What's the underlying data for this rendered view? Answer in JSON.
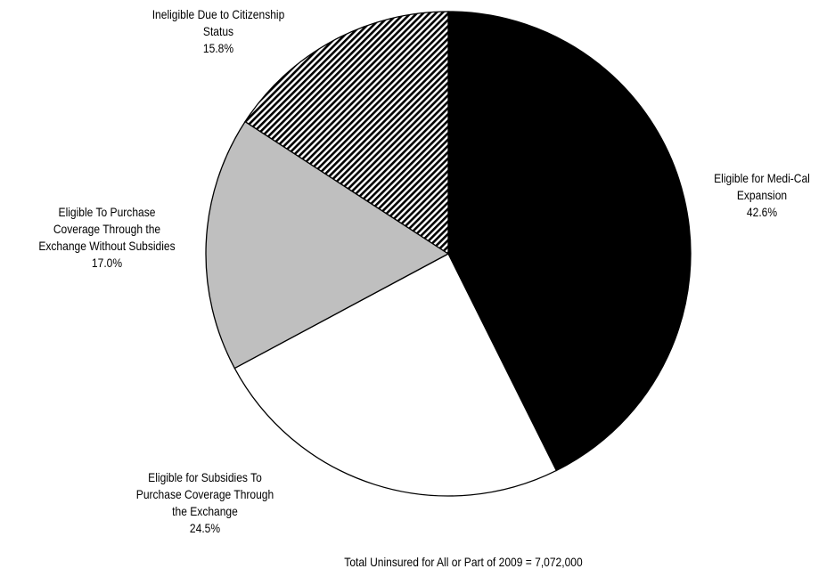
{
  "chart_data": {
    "type": "pie",
    "slices": [
      {
        "label_lines": [
          "Eligible for Medi-Cal",
          "Expansion"
        ],
        "value": 42.6,
        "value_label": "42.6%",
        "color": "#000000",
        "pattern": "solid"
      },
      {
        "label_lines": [
          "Eligible for Subsidies To",
          "Purchase Coverage Through",
          "the Exchange"
        ],
        "value": 24.5,
        "value_label": "24.5%",
        "color": "#ffffff",
        "pattern": "solid"
      },
      {
        "label_lines": [
          "Eligible To Purchase",
          "Coverage Through the",
          "Exchange Without Subsidies"
        ],
        "value": 17.0,
        "value_label": "17.0%",
        "color": "#bfbfbf",
        "pattern": "solid"
      },
      {
        "label_lines": [
          "Ineligible Due to Citizenship",
          "Status"
        ],
        "value": 15.8,
        "value_label": "15.8%",
        "color": "#000000",
        "pattern": "diagonal-hatch"
      }
    ],
    "start": "12 o'clock",
    "direction": "clockwise",
    "footnote": "Total Uninsured for All or Part of 2009 = 7,072,000"
  }
}
